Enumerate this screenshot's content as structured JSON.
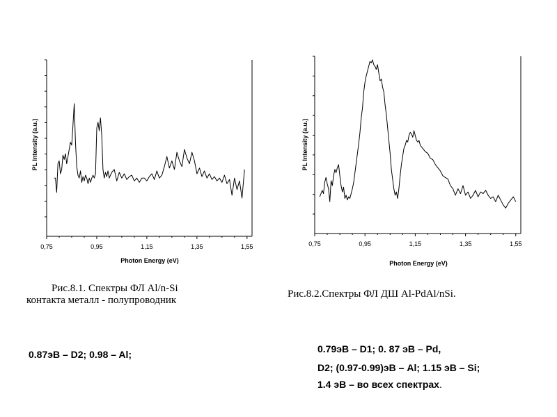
{
  "chart_data": [
    {
      "type": "line",
      "xlabel": "Photon Energy (eV)",
      "ylabel": "PL Intensity (a.u.)",
      "xticks": [
        "0,75",
        "0,95",
        "1,15",
        "1,35",
        "1,55"
      ],
      "xlim": [
        0.75,
        1.57
      ],
      "ylim": [
        0,
        1
      ],
      "x": [
        0.78,
        0.785,
        0.79,
        0.795,
        0.8,
        0.805,
        0.81,
        0.815,
        0.82,
        0.825,
        0.83,
        0.835,
        0.84,
        0.845,
        0.85,
        0.855,
        0.86,
        0.865,
        0.87,
        0.875,
        0.88,
        0.885,
        0.89,
        0.895,
        0.9,
        0.905,
        0.91,
        0.915,
        0.92,
        0.925,
        0.93,
        0.935,
        0.94,
        0.945,
        0.95,
        0.955,
        0.96,
        0.965,
        0.97,
        0.975,
        0.98,
        0.985,
        0.99,
        0.995,
        1.0,
        1.01,
        1.02,
        1.03,
        1.04,
        1.05,
        1.06,
        1.07,
        1.08,
        1.09,
        1.1,
        1.11,
        1.12,
        1.13,
        1.14,
        1.15,
        1.16,
        1.17,
        1.18,
        1.19,
        1.2,
        1.21,
        1.22,
        1.23,
        1.24,
        1.25,
        1.26,
        1.27,
        1.28,
        1.29,
        1.3,
        1.31,
        1.32,
        1.33,
        1.34,
        1.35,
        1.36,
        1.37,
        1.38,
        1.39,
        1.4,
        1.41,
        1.42,
        1.43,
        1.44,
        1.45,
        1.46,
        1.47,
        1.48,
        1.49,
        1.5,
        1.51,
        1.52,
        1.53,
        1.54
      ],
      "y": [
        0.3,
        0.3,
        0.2,
        0.4,
        0.42,
        0.33,
        0.36,
        0.46,
        0.43,
        0.47,
        0.4,
        0.45,
        0.5,
        0.55,
        0.53,
        0.67,
        0.82,
        0.55,
        0.38,
        0.32,
        0.3,
        0.35,
        0.27,
        0.31,
        0.28,
        0.32,
        0.3,
        0.26,
        0.3,
        0.27,
        0.3,
        0.32,
        0.3,
        0.33,
        0.65,
        0.69,
        0.63,
        0.72,
        0.6,
        0.36,
        0.3,
        0.34,
        0.31,
        0.35,
        0.3,
        0.34,
        0.36,
        0.28,
        0.34,
        0.3,
        0.33,
        0.29,
        0.31,
        0.32,
        0.28,
        0.3,
        0.27,
        0.3,
        0.3,
        0.28,
        0.31,
        0.33,
        0.29,
        0.35,
        0.3,
        0.32,
        0.38,
        0.45,
        0.37,
        0.42,
        0.36,
        0.48,
        0.42,
        0.38,
        0.5,
        0.44,
        0.4,
        0.48,
        0.42,
        0.33,
        0.37,
        0.31,
        0.35,
        0.3,
        0.33,
        0.29,
        0.31,
        0.28,
        0.3,
        0.27,
        0.32,
        0.26,
        0.29,
        0.18,
        0.3,
        0.22,
        0.28,
        0.16,
        0.36
      ]
    },
    {
      "type": "line",
      "xlabel": "Photon Energy (eV)",
      "ylabel": "PL Intensity (a.u.)",
      "xticks": [
        "0,75",
        "0,95",
        "1,15",
        "1,35",
        "1,55"
      ],
      "xlim": [
        0.75,
        1.57
      ],
      "ylim": [
        0,
        1
      ],
      "x": [
        0.77,
        0.775,
        0.78,
        0.785,
        0.79,
        0.795,
        0.8,
        0.805,
        0.81,
        0.815,
        0.82,
        0.825,
        0.83,
        0.835,
        0.84,
        0.845,
        0.85,
        0.855,
        0.86,
        0.865,
        0.87,
        0.875,
        0.88,
        0.885,
        0.89,
        0.895,
        0.9,
        0.905,
        0.91,
        0.915,
        0.92,
        0.925,
        0.93,
        0.935,
        0.94,
        0.945,
        0.95,
        0.955,
        0.96,
        0.965,
        0.97,
        0.975,
        0.98,
        0.985,
        0.99,
        0.995,
        1.0,
        1.005,
        1.01,
        1.015,
        1.02,
        1.025,
        1.03,
        1.035,
        1.04,
        1.045,
        1.05,
        1.055,
        1.06,
        1.065,
        1.07,
        1.075,
        1.08,
        1.085,
        1.09,
        1.095,
        1.1,
        1.105,
        1.11,
        1.115,
        1.12,
        1.125,
        1.13,
        1.135,
        1.14,
        1.145,
        1.15,
        1.155,
        1.16,
        1.165,
        1.17,
        1.18,
        1.19,
        1.2,
        1.21,
        1.22,
        1.23,
        1.24,
        1.25,
        1.26,
        1.27,
        1.28,
        1.29,
        1.3,
        1.31,
        1.32,
        1.33,
        1.34,
        1.35,
        1.36,
        1.37,
        1.38,
        1.39,
        1.4,
        1.41,
        1.42,
        1.43,
        1.44,
        1.45,
        1.46,
        1.47,
        1.48,
        1.49,
        1.5,
        1.51,
        1.52,
        1.53,
        1.54,
        1.55
      ],
      "y": [
        0.15,
        0.17,
        0.19,
        0.17,
        0.24,
        0.27,
        0.23,
        0.2,
        0.12,
        0.25,
        0.22,
        0.28,
        0.32,
        0.3,
        0.33,
        0.35,
        0.28,
        0.22,
        0.18,
        0.21,
        0.14,
        0.16,
        0.13,
        0.15,
        0.14,
        0.17,
        0.2,
        0.24,
        0.3,
        0.36,
        0.42,
        0.48,
        0.55,
        0.64,
        0.7,
        0.8,
        0.86,
        0.9,
        0.93,
        0.96,
        0.99,
        0.98,
        1.0,
        0.97,
        0.96,
        0.94,
        0.97,
        0.92,
        0.87,
        0.88,
        0.83,
        0.8,
        0.72,
        0.66,
        0.58,
        0.5,
        0.42,
        0.32,
        0.26,
        0.2,
        0.16,
        0.18,
        0.14,
        0.2,
        0.28,
        0.35,
        0.4,
        0.45,
        0.47,
        0.5,
        0.49,
        0.53,
        0.55,
        0.54,
        0.52,
        0.56,
        0.53,
        0.5,
        0.49,
        0.5,
        0.47,
        0.45,
        0.43,
        0.42,
        0.39,
        0.38,
        0.35,
        0.33,
        0.31,
        0.28,
        0.27,
        0.26,
        0.22,
        0.2,
        0.16,
        0.2,
        0.17,
        0.22,
        0.16,
        0.18,
        0.14,
        0.16,
        0.19,
        0.15,
        0.18,
        0.17,
        0.19,
        0.16,
        0.14,
        0.15,
        0.12,
        0.16,
        0.13,
        0.1,
        0.08,
        0.11,
        0.13,
        0.15,
        0.12
      ]
    }
  ],
  "captions": {
    "fig1_line1": "Рис.8.1. Спектры  ФЛ Al/n-Si",
    "fig1_line2": "контакта  металл - полупроводник",
    "fig2": "Рис.8.2.Спектры  ФЛ  ДШ  Al-PdAl/nSi."
  },
  "values_text": {
    "left": "0.87эВ – D2; 0.98 – Al;",
    "right_line1": "0.79эВ – D1; 0. 87 эВ – Pd,",
    "right_line2": "D2; (0.97-0.99)эВ – Al; 1.15 эВ – Si;",
    "right_line3": "1.4 эВ – во всех спектрах",
    "right_line3_tail": "."
  }
}
